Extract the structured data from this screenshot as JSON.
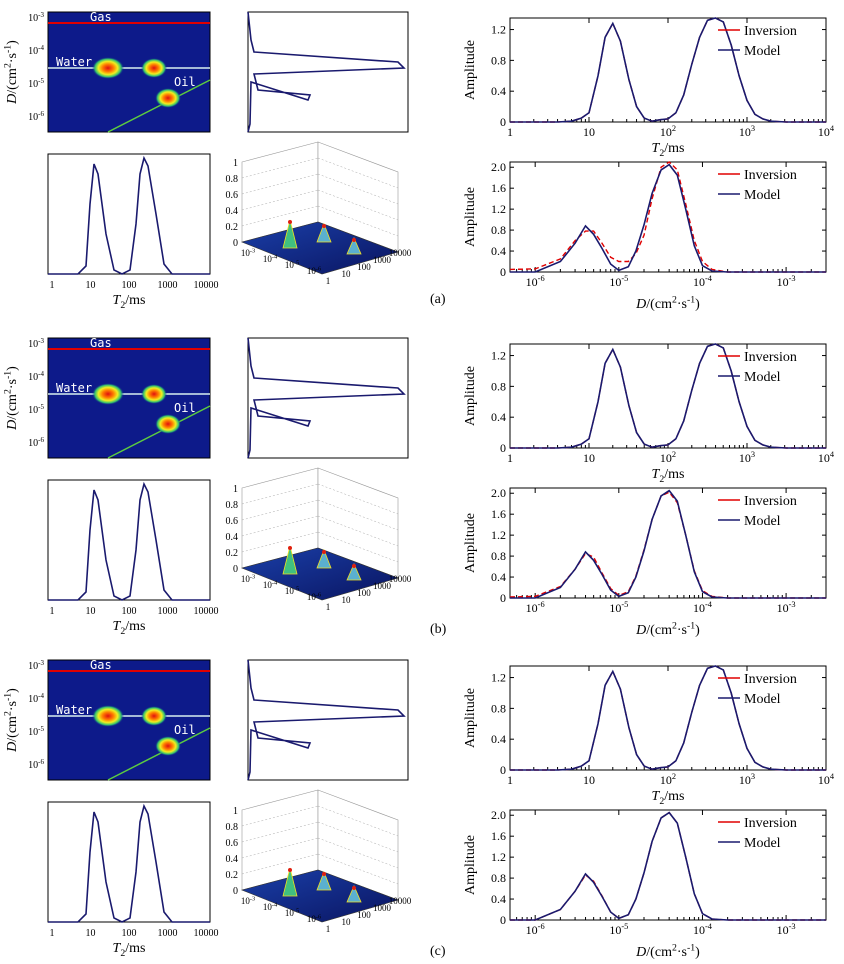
{
  "figure": {
    "panel_labels": [
      "(a)",
      "(b)",
      "(c)"
    ],
    "region_labels": {
      "gas": "Gas",
      "water": "Water",
      "oil": "Oil"
    },
    "x_ticks_small": [
      "1",
      "10",
      "100",
      "1000",
      "10000"
    ],
    "x_label_t2": "T2/ms",
    "y_label_d": "D/(cm2·s-1)",
    "y_label_amp": "Amplitude",
    "surface_z_ticks": [
      "0",
      "0.2",
      "0.4",
      "0.6",
      "0.8",
      "1"
    ],
    "surface_d_ticks": [
      "10-3",
      "10-4",
      "10-5",
      "10-6"
    ],
    "surface_t2_ticks": [
      "1",
      "10",
      "100",
      "1000",
      "10000"
    ],
    "colors": {
      "map_background": "#0d1a8a",
      "gas_line": "#e00000",
      "water_line": "#d8f0f0",
      "oil_line": "#5ccc40",
      "model": "#1a1a6e",
      "inversion": "#e00000"
    }
  },
  "chart_data": [
    {
      "type": "line",
      "panel": "(a)",
      "chart": "T2 distribution",
      "x": [
        1,
        2,
        4,
        6,
        8,
        10,
        13,
        16,
        20,
        25,
        32,
        40,
        50,
        63,
        80,
        100,
        126,
        158,
        200,
        251,
        316,
        398,
        501,
        631,
        794,
        1000,
        1259,
        1585,
        2000,
        3162,
        10000
      ],
      "series": [
        {
          "name": "Inversion",
          "values": [
            0,
            0,
            0,
            0.01,
            0.05,
            0.12,
            0.6,
            1.1,
            1.28,
            1.05,
            0.55,
            0.2,
            0.05,
            0.01,
            0.03,
            0.04,
            0.12,
            0.35,
            0.75,
            1.1,
            1.32,
            1.38,
            1.3,
            1.0,
            0.6,
            0.28,
            0.1,
            0.04,
            0.01,
            0,
            0
          ]
        },
        {
          "name": "Model",
          "values": [
            0,
            0,
            0,
            0.01,
            0.05,
            0.12,
            0.6,
            1.1,
            1.28,
            1.05,
            0.55,
            0.2,
            0.05,
            0.01,
            0.03,
            0.04,
            0.12,
            0.35,
            0.75,
            1.1,
            1.32,
            1.38,
            1.3,
            1.0,
            0.6,
            0.28,
            0.1,
            0.04,
            0.01,
            0,
            0
          ]
        }
      ],
      "xlabel": "T2/ms",
      "ylabel": "Amplitude",
      "xlim": [
        1,
        10000
      ],
      "xscale": "log",
      "ylim": [
        0,
        1.35
      ],
      "yticks": [
        "0",
        "0.4",
        "0.8",
        "1.2"
      ],
      "xticks": [
        "1",
        "10",
        "10^2",
        "10^3",
        "10^4"
      ],
      "legend": "top-right"
    },
    {
      "type": "line",
      "panel": "(a)",
      "chart": "D distribution",
      "x": [
        5e-07,
        1e-06,
        2e-06,
        3e-06,
        4e-06,
        5e-06,
        6.3e-06,
        8e-06,
        1e-05,
        1.3e-05,
        1.6e-05,
        2e-05,
        2.5e-05,
        3.2e-05,
        4e-05,
        5e-05,
        6.3e-05,
        8e-05,
        0.0001,
        0.00013,
        0.0002,
        0.003
      ],
      "series": [
        {
          "name": "Inversion",
          "values": [
            0.05,
            0.06,
            0.25,
            0.6,
            0.78,
            0.78,
            0.55,
            0.28,
            0.2,
            0.2,
            0.35,
            0.7,
            1.4,
            2.0,
            2.1,
            1.95,
            1.3,
            0.6,
            0.2,
            0.05,
            0,
            0
          ]
        },
        {
          "name": "Model",
          "values": [
            0,
            0,
            0.2,
            0.55,
            0.88,
            0.72,
            0.45,
            0.15,
            0.03,
            0.1,
            0.4,
            0.9,
            1.5,
            1.95,
            2.05,
            1.85,
            1.2,
            0.5,
            0.12,
            0.02,
            0,
            0
          ]
        }
      ],
      "xlabel": "D/(cm2·s-1)",
      "ylabel": "Amplitude",
      "xlim": [
        5e-07,
        0.003
      ],
      "xscale": "log",
      "ylim": [
        0,
        2.1
      ],
      "yticks": [
        "0",
        "0.4",
        "0.8",
        "1.2",
        "1.6",
        "2.0"
      ],
      "xticks": [
        "10^-6",
        "10^-5",
        "10^-4",
        "10^-3"
      ],
      "legend": "top-right"
    },
    {
      "type": "line",
      "panel": "(b)",
      "chart": "T2 distribution",
      "x": [
        1,
        2,
        4,
        6,
        8,
        10,
        13,
        16,
        20,
        25,
        32,
        40,
        50,
        63,
        80,
        100,
        126,
        158,
        200,
        251,
        316,
        398,
        501,
        631,
        794,
        1000,
        1259,
        1585,
        2000,
        3162,
        10000
      ],
      "series": [
        {
          "name": "Inversion",
          "values": [
            0,
            0,
            0,
            0.01,
            0.05,
            0.12,
            0.6,
            1.1,
            1.28,
            1.05,
            0.55,
            0.2,
            0.05,
            0.01,
            0.03,
            0.04,
            0.12,
            0.35,
            0.75,
            1.1,
            1.32,
            1.38,
            1.3,
            1.0,
            0.6,
            0.28,
            0.1,
            0.04,
            0.01,
            0,
            0
          ]
        },
        {
          "name": "Model",
          "values": [
            0,
            0,
            0,
            0.01,
            0.05,
            0.12,
            0.6,
            1.1,
            1.28,
            1.05,
            0.55,
            0.2,
            0.05,
            0.01,
            0.03,
            0.04,
            0.12,
            0.35,
            0.75,
            1.1,
            1.32,
            1.38,
            1.3,
            1.0,
            0.6,
            0.28,
            0.1,
            0.04,
            0.01,
            0,
            0
          ]
        }
      ],
      "xlabel": "T2/ms",
      "ylabel": "Amplitude",
      "xlim": [
        1,
        10000
      ],
      "xscale": "log",
      "ylim": [
        0,
        1.35
      ],
      "yticks": [
        "0",
        "0.4",
        "0.8",
        "1.2"
      ],
      "xticks": [
        "1",
        "10",
        "10^2",
        "10^3",
        "10^4"
      ],
      "legend": "top-right"
    },
    {
      "type": "line",
      "panel": "(b)",
      "chart": "D distribution",
      "x": [
        5e-07,
        1e-06,
        2e-06,
        3e-06,
        4e-06,
        5e-06,
        6.3e-06,
        8e-06,
        1e-05,
        1.3e-05,
        1.6e-05,
        2e-05,
        2.5e-05,
        3.2e-05,
        4e-05,
        5e-05,
        6.3e-05,
        8e-05,
        0.0001,
        0.00013,
        0.0002,
        0.003
      ],
      "series": [
        {
          "name": "Inversion",
          "values": [
            0.02,
            0.03,
            0.22,
            0.55,
            0.85,
            0.78,
            0.48,
            0.18,
            0.05,
            0.12,
            0.42,
            0.92,
            1.5,
            1.95,
            2.02,
            1.82,
            1.2,
            0.52,
            0.14,
            0.03,
            0,
            0
          ]
        },
        {
          "name": "Model",
          "values": [
            0,
            0,
            0.2,
            0.55,
            0.88,
            0.72,
            0.45,
            0.15,
            0.03,
            0.1,
            0.4,
            0.9,
            1.5,
            1.95,
            2.05,
            1.85,
            1.2,
            0.5,
            0.12,
            0.02,
            0,
            0
          ]
        }
      ],
      "xlabel": "D/(cm2·s-1)",
      "ylabel": "Amplitude",
      "xlim": [
        5e-07,
        0.003
      ],
      "xscale": "log",
      "ylim": [
        0,
        2.1
      ],
      "yticks": [
        "0",
        "0.4",
        "0.8",
        "1.2",
        "1.6",
        "2.0"
      ],
      "xticks": [
        "10^-6",
        "10^-5",
        "10^-4",
        "10^-3"
      ],
      "legend": "top-right"
    },
    {
      "type": "line",
      "panel": "(c)",
      "chart": "T2 distribution",
      "x": [
        1,
        2,
        4,
        6,
        8,
        10,
        13,
        16,
        20,
        25,
        32,
        40,
        50,
        63,
        80,
        100,
        126,
        158,
        200,
        251,
        316,
        398,
        501,
        631,
        794,
        1000,
        1259,
        1585,
        2000,
        3162,
        10000
      ],
      "series": [
        {
          "name": "Inversion",
          "values": [
            0,
            0,
            0,
            0.01,
            0.05,
            0.12,
            0.6,
            1.1,
            1.28,
            1.05,
            0.55,
            0.2,
            0.05,
            0.01,
            0.03,
            0.04,
            0.12,
            0.35,
            0.75,
            1.1,
            1.32,
            1.38,
            1.3,
            1.0,
            0.6,
            0.28,
            0.1,
            0.04,
            0.01,
            0,
            0
          ]
        },
        {
          "name": "Model",
          "values": [
            0,
            0,
            0,
            0.01,
            0.05,
            0.12,
            0.6,
            1.1,
            1.28,
            1.05,
            0.55,
            0.2,
            0.05,
            0.01,
            0.03,
            0.04,
            0.12,
            0.35,
            0.75,
            1.1,
            1.32,
            1.38,
            1.3,
            1.0,
            0.6,
            0.28,
            0.1,
            0.04,
            0.01,
            0,
            0
          ]
        }
      ],
      "xlabel": "T2/ms",
      "ylabel": "Amplitude",
      "xlim": [
        1,
        10000
      ],
      "xscale": "log",
      "ylim": [
        0,
        1.35
      ],
      "yticks": [
        "0",
        "0.4",
        "0.8",
        "1.2"
      ],
      "xticks": [
        "1",
        "10",
        "10^2",
        "10^3",
        "10^4"
      ],
      "legend": "top-right"
    },
    {
      "type": "line",
      "panel": "(c)",
      "chart": "D distribution",
      "x": [
        5e-07,
        1e-06,
        2e-06,
        3e-06,
        4e-06,
        5e-06,
        6.3e-06,
        8e-06,
        1e-05,
        1.3e-05,
        1.6e-05,
        2e-05,
        2.5e-05,
        3.2e-05,
        4e-05,
        5e-05,
        6.3e-05,
        8e-05,
        0.0001,
        0.00013,
        0.0002,
        0.003
      ],
      "series": [
        {
          "name": "Inversion",
          "values": [
            0,
            0,
            0.2,
            0.55,
            0.86,
            0.74,
            0.46,
            0.15,
            0.03,
            0.1,
            0.4,
            0.9,
            1.5,
            1.95,
            2.05,
            1.85,
            1.2,
            0.5,
            0.12,
            0.02,
            0,
            0
          ]
        },
        {
          "name": "Model",
          "values": [
            0,
            0,
            0.2,
            0.55,
            0.88,
            0.72,
            0.45,
            0.15,
            0.03,
            0.1,
            0.4,
            0.9,
            1.5,
            1.95,
            2.05,
            1.85,
            1.2,
            0.5,
            0.12,
            0.02,
            0,
            0
          ]
        }
      ],
      "xlabel": "D/(cm2·s-1)",
      "ylabel": "Amplitude",
      "xlim": [
        5e-07,
        0.003
      ],
      "xscale": "log",
      "ylim": [
        0,
        2.1
      ],
      "yticks": [
        "0",
        "0.4",
        "0.8",
        "1.2",
        "1.6",
        "2.0"
      ],
      "xticks": [
        "10^-6",
        "10^-5",
        "10^-4",
        "10^-3"
      ],
      "legend": "top-right"
    }
  ]
}
